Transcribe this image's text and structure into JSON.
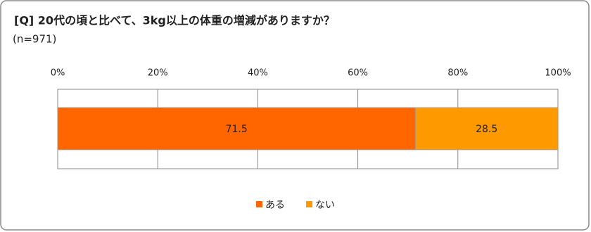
{
  "chart_data": {
    "type": "stacked-bar-horizontal",
    "title": "[Q] 20代の頃と比べて、3kg以上の体重の増減がありますか？",
    "subtitle": "(n=971)",
    "series": [
      {
        "name": "ある",
        "color": "#ff6600",
        "values": [
          71.5
        ]
      },
      {
        "name": "ない",
        "color": "#ff9900",
        "values": [
          28.5
        ]
      }
    ],
    "xlim": [
      0,
      100
    ],
    "xticks": [
      {
        "value": 0,
        "label": "0%"
      },
      {
        "value": 20,
        "label": "20%"
      },
      {
        "value": 40,
        "label": "40%"
      },
      {
        "value": 60,
        "label": "60%"
      },
      {
        "value": 80,
        "label": "80%"
      },
      {
        "value": 100,
        "label": "100%"
      }
    ],
    "grid": true,
    "legend": "bottom"
  }
}
